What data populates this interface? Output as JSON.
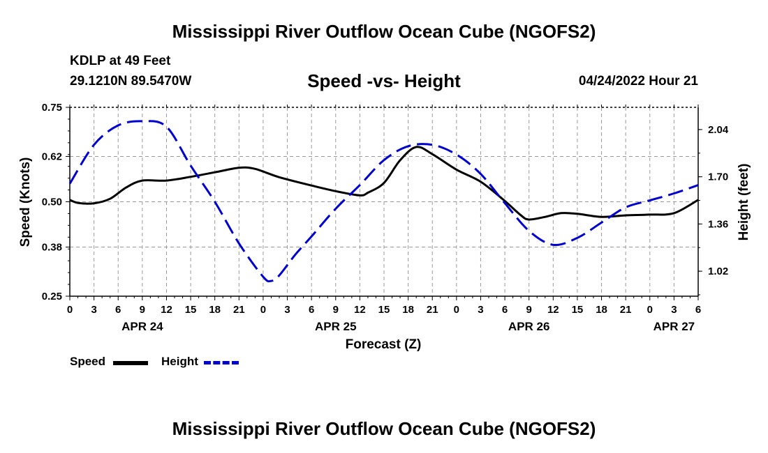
{
  "title": "Mississippi River Outflow Ocean Cube (NGOFS2)",
  "station": "KDLP at 49 Feet",
  "coords": "29.1210N  89.5470W",
  "subtitle": "Speed -vs- Height",
  "datetime": "04/24/2022 Hour 21",
  "bottom_title": "Mississippi River Outflow Ocean Cube (NGOFS2)",
  "legend": {
    "speed": "Speed",
    "height": "Height"
  },
  "colors": {
    "speed": "#000000",
    "height": "#0000cc",
    "grid": "#999999"
  },
  "chart_data": {
    "type": "line",
    "title": "Speed -vs- Height",
    "xlabel": "Forecast (Z)",
    "ylabel": "Speed (Knots)",
    "y2label": "Height (feet)",
    "x_range_hours": [
      0,
      78
    ],
    "x_tick_labels": [
      "0",
      "3",
      "6",
      "9",
      "12",
      "15",
      "18",
      "21",
      "0",
      "3",
      "6",
      "9",
      "12",
      "15",
      "18",
      "21",
      "0",
      "3",
      "6",
      "9",
      "12",
      "15",
      "18",
      "21",
      "0",
      "3",
      "6"
    ],
    "date_labels": [
      {
        "hour": 9,
        "label": "APR 24"
      },
      {
        "hour": 33,
        "label": "APR 25"
      },
      {
        "hour": 57,
        "label": "APR 26"
      },
      {
        "hour": 75,
        "label": "APR 27"
      }
    ],
    "y_ticks": [
      "0.25",
      "0.38",
      "0.50",
      "0.62",
      "0.75"
    ],
    "ylim": [
      0.25,
      0.75
    ],
    "y2_ticks": [
      "1.02",
      "1.36",
      "1.70",
      "2.04"
    ],
    "y2lim": [
      0.84,
      2.2
    ],
    "series": [
      {
        "name": "Speed",
        "axis": "left",
        "x": [
          0,
          1,
          3,
          5,
          7,
          9,
          12,
          15,
          18,
          21,
          23,
          26,
          30,
          33,
          36,
          37,
          39,
          41,
          43,
          45,
          48,
          51,
          54,
          56,
          57,
          59,
          61,
          63,
          66,
          69,
          72,
          75,
          78
        ],
        "values": [
          0.505,
          0.497,
          0.496,
          0.508,
          0.538,
          0.556,
          0.556,
          0.566,
          0.578,
          0.59,
          0.587,
          0.565,
          0.543,
          0.528,
          0.517,
          0.524,
          0.55,
          0.61,
          0.645,
          0.626,
          0.585,
          0.553,
          0.502,
          0.464,
          0.453,
          0.46,
          0.47,
          0.468,
          0.46,
          0.464,
          0.466,
          0.47,
          0.505
        ]
      },
      {
        "name": "Height",
        "axis": "right",
        "x": [
          0,
          3,
          6,
          9,
          12,
          15,
          18,
          21,
          24,
          25,
          26,
          28,
          30,
          33,
          36,
          39,
          42,
          45,
          48,
          51,
          54,
          57,
          60,
          63,
          66,
          69,
          72,
          75,
          78
        ],
        "values": [
          1.65,
          1.93,
          2.07,
          2.1,
          2.06,
          1.78,
          1.52,
          1.22,
          0.98,
          0.95,
          0.99,
          1.14,
          1.27,
          1.47,
          1.64,
          1.82,
          1.92,
          1.93,
          1.86,
          1.72,
          1.51,
          1.31,
          1.21,
          1.26,
          1.37,
          1.48,
          1.53,
          1.58,
          1.64
        ]
      }
    ]
  }
}
